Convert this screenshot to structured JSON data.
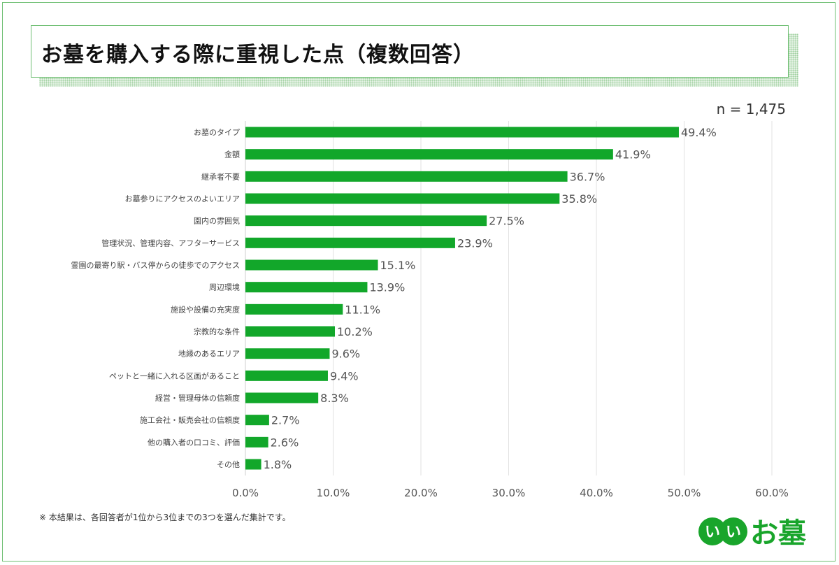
{
  "chart_data": {
    "type": "bar",
    "orientation": "horizontal",
    "title": "お墓を購入する際に重視した点（複数回答）",
    "sample_size": "n = 1,475",
    "categories": [
      "お墓のタイプ",
      "金額",
      "継承者不要",
      "お墓参りにアクセスのよいエリア",
      "園内の雰囲気",
      "管理状況、管理内容、アフターサービス",
      "霊園の最寄り駅・バス停からの徒歩でのアクセス",
      "周辺環境",
      "施設や設備の充実度",
      "宗教的な条件",
      "地縁のあるエリア",
      "ペットと一緒に入れる区画があること",
      "経営・管理母体の信頼度",
      "施工会社・販売会社の信頼度",
      "他の購入者の口コミ、評価",
      "その他"
    ],
    "values": [
      49.4,
      41.9,
      36.7,
      35.8,
      27.5,
      23.9,
      15.1,
      13.9,
      11.1,
      10.2,
      9.6,
      9.4,
      8.3,
      2.7,
      2.6,
      1.8
    ],
    "data_labels": [
      "49.4%",
      "41.9%",
      "36.7%",
      "35.8%",
      "27.5%",
      "23.9%",
      "15.1%",
      "13.9%",
      "11.1%",
      "10.2%",
      "9.6%",
      "9.4%",
      "8.3%",
      "2.7%",
      "2.6%",
      "1.8%"
    ],
    "xlim": [
      0,
      60
    ],
    "x_ticks": [
      "0.0%",
      "10.0%",
      "20.0%",
      "30.0%",
      "40.0%",
      "50.0%",
      "60.0%"
    ],
    "grid": true,
    "bar_color": "#12a72a"
  },
  "footnote": "※ 本結果は、各回答者が1位から3位までの3つを選んだ集計です。",
  "logo": {
    "text": "いいお墓",
    "color": "#19a52b"
  }
}
